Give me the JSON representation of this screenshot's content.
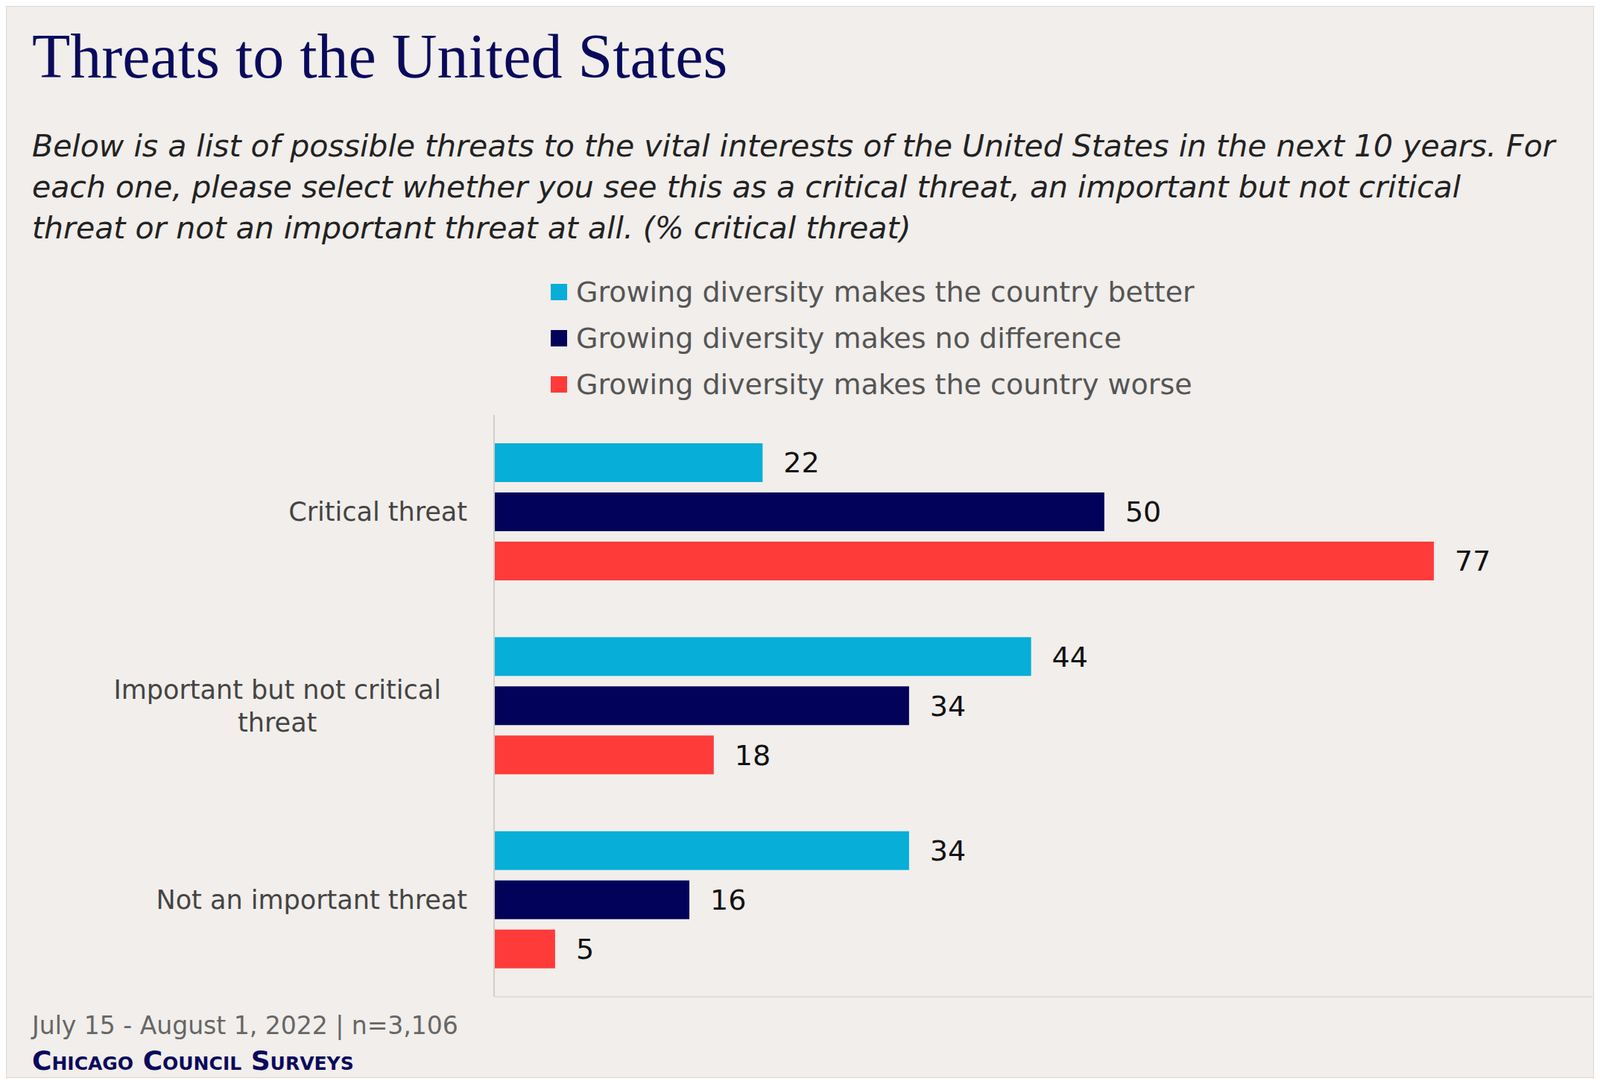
{
  "chart_data": {
    "type": "bar",
    "title": "Threats to the United States",
    "subtitle": "Below is a list of possible threats to the vital interests of the United States in the next 10 years. For each one, please select whether you see this as a critical threat, an important but not critical threat or not an important threat at all. (% critical threat)",
    "note": "July 15 - August 1, 2022 | n=3,106",
    "source": "Chicago Council Surveys",
    "categories": [
      "Critical threat",
      "Important but not critical threat",
      "Not an important threat"
    ],
    "series": [
      {
        "name": "Growing diversity makes the country better",
        "color": "#06aed8",
        "values": [
          22,
          44,
          34
        ]
      },
      {
        "name": "Growing diversity makes no difference",
        "color": "#02025a",
        "values": [
          50,
          34,
          16
        ]
      },
      {
        "name": "Growing diversity makes the country worse",
        "color": "#ff3b3a",
        "values": [
          77,
          18,
          5
        ]
      }
    ],
    "xlim": [
      0,
      90
    ],
    "orientation": "horizontal",
    "data_labels": true,
    "tick_labels": "y",
    "legend": "top",
    "grid": false
  }
}
